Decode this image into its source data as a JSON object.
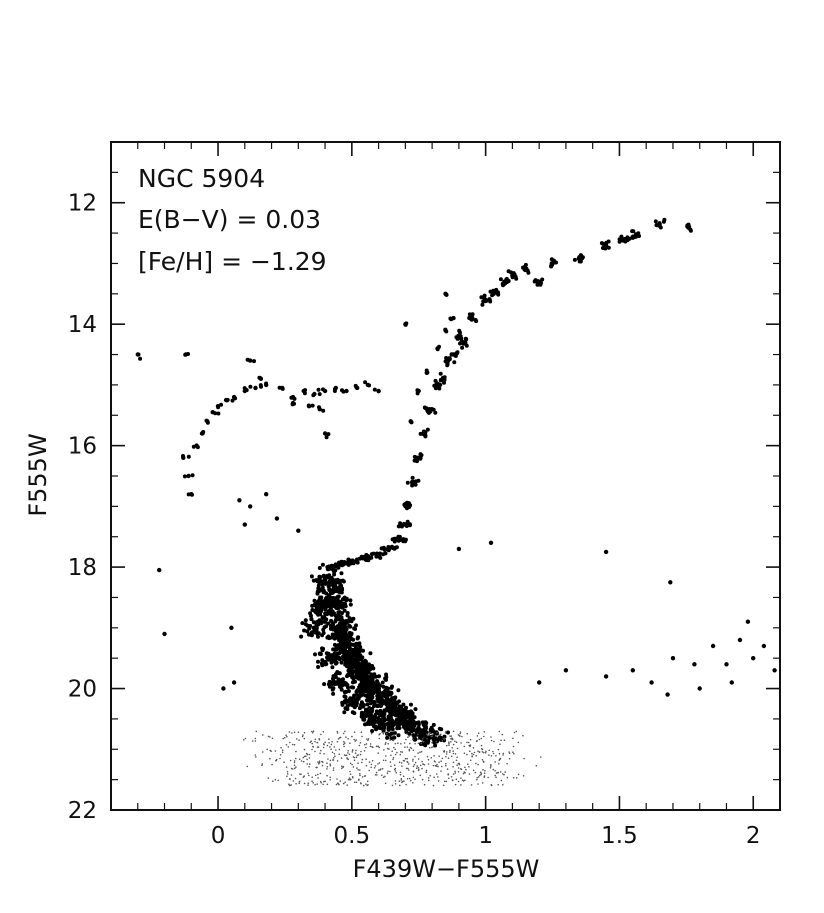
{
  "chart_data": {
    "type": "scatter",
    "title": "",
    "annotations": [
      "NGC 5904",
      "E(B−V) = 0.03",
      "[Fe/H] = −1.29"
    ],
    "xlabel": "F439W−F555W",
    "ylabel": "F555W",
    "xlim": [
      -0.4,
      2.1
    ],
    "ylim": [
      22,
      11
    ],
    "y_axis_inverted": true,
    "x_ticks": [
      0,
      0.5,
      1,
      1.5,
      2
    ],
    "x_tick_labels": [
      "0",
      "0.5",
      "1",
      "1.5",
      "2"
    ],
    "y_ticks": [
      12,
      14,
      16,
      18,
      20,
      22
    ],
    "y_tick_labels": [
      "12",
      "14",
      "16",
      "18",
      "20",
      "22"
    ],
    "grid": false,
    "legend": "none",
    "marker_color": "#000000",
    "series": [
      {
        "description_of_feature": "main sequence turnoff and upper main sequence",
        "points": [
          [
            0.4,
            18.2
          ],
          [
            0.42,
            18.5
          ],
          [
            0.44,
            18.8
          ],
          [
            0.46,
            19.1
          ],
          [
            0.48,
            19.4
          ],
          [
            0.5,
            19.6
          ],
          [
            0.53,
            19.8
          ],
          [
            0.56,
            20.0
          ],
          [
            0.6,
            20.2
          ],
          [
            0.64,
            20.35
          ],
          [
            0.68,
            20.5
          ],
          [
            0.72,
            20.6
          ],
          [
            0.76,
            20.7
          ],
          [
            0.8,
            20.8
          ],
          [
            0.43,
            18.3
          ],
          [
            0.45,
            18.6
          ],
          [
            0.47,
            19.0
          ],
          [
            0.49,
            19.3
          ],
          [
            0.52,
            19.5
          ],
          [
            0.55,
            19.7
          ],
          [
            0.58,
            19.9
          ],
          [
            0.62,
            20.1
          ],
          [
            0.66,
            20.3
          ],
          [
            0.7,
            20.45
          ],
          [
            0.38,
            18.7
          ],
          [
            0.36,
            19.0
          ],
          [
            0.41,
            19.5
          ],
          [
            0.45,
            19.9
          ],
          [
            0.5,
            20.2
          ],
          [
            0.55,
            20.4
          ],
          [
            0.6,
            20.55
          ],
          [
            0.65,
            20.65
          ]
        ]
      },
      {
        "description_of_feature": "subgiant branch",
        "points": [
          [
            0.42,
            18.0
          ],
          [
            0.46,
            17.95
          ],
          [
            0.5,
            17.9
          ],
          [
            0.55,
            17.85
          ],
          [
            0.6,
            17.8
          ],
          [
            0.64,
            17.7
          ],
          [
            0.68,
            17.55
          ],
          [
            0.7,
            17.3
          ]
        ]
      },
      {
        "description_of_feature": "red giant branch",
        "points": [
          [
            0.71,
            17.0
          ],
          [
            0.73,
            16.6
          ],
          [
            0.75,
            16.2
          ],
          [
            0.77,
            15.8
          ],
          [
            0.79,
            15.4
          ],
          [
            0.82,
            15.0
          ],
          [
            0.86,
            14.6
          ],
          [
            0.9,
            14.2
          ],
          [
            0.95,
            13.9
          ],
          [
            1.0,
            13.6
          ],
          [
            1.07,
            13.3
          ],
          [
            1.15,
            13.1
          ],
          [
            1.25,
            13.0
          ],
          [
            1.35,
            12.9
          ],
          [
            1.45,
            12.7
          ],
          [
            1.52,
            12.6
          ],
          [
            1.56,
            12.55
          ],
          [
            1.65,
            12.35
          ],
          [
            1.76,
            12.4
          ],
          [
            0.84,
            14.9
          ],
          [
            0.88,
            14.5
          ],
          [
            0.92,
            14.3
          ],
          [
            1.03,
            13.5
          ],
          [
            1.1,
            13.2
          ],
          [
            1.2,
            13.3
          ]
        ]
      },
      {
        "description_of_feature": "asymptotic giant branch",
        "points": [
          [
            0.72,
            15.6
          ],
          [
            0.75,
            15.1
          ],
          [
            0.78,
            14.8
          ],
          [
            0.82,
            14.4
          ],
          [
            0.85,
            14.1
          ],
          [
            0.88,
            13.9
          ],
          [
            0.85,
            13.5
          ],
          [
            0.7,
            14.0
          ]
        ]
      },
      {
        "description_of_feature": "horizontal branch",
        "points": [
          [
            -0.13,
            16.2
          ],
          [
            -0.11,
            16.5
          ],
          [
            -0.1,
            16.8
          ],
          [
            -0.08,
            16.0
          ],
          [
            -0.06,
            15.8
          ],
          [
            -0.04,
            15.6
          ],
          [
            -0.02,
            15.45
          ],
          [
            0.0,
            15.35
          ],
          [
            0.03,
            15.25
          ],
          [
            0.06,
            15.2
          ],
          [
            0.1,
            15.1
          ],
          [
            0.14,
            15.05
          ],
          [
            0.18,
            15.0
          ],
          [
            0.24,
            15.05
          ],
          [
            0.28,
            15.2
          ],
          [
            0.32,
            15.1
          ],
          [
            0.36,
            15.15
          ],
          [
            0.4,
            15.1
          ],
          [
            0.44,
            15.05
          ],
          [
            0.48,
            15.1
          ],
          [
            0.52,
            15.05
          ],
          [
            0.56,
            15.0
          ],
          [
            0.6,
            15.1
          ],
          [
            0.28,
            15.3
          ],
          [
            0.34,
            15.35
          ],
          [
            0.38,
            15.4
          ],
          [
            -0.3,
            14.5
          ],
          [
            -0.12,
            14.5
          ],
          [
            0.12,
            14.6
          ],
          [
            0.16,
            14.9
          ],
          [
            0.4,
            15.8
          ]
        ]
      },
      {
        "description_of_feature": "blue stragglers and field stars",
        "points": [
          [
            0.08,
            16.9
          ],
          [
            0.12,
            17.0
          ],
          [
            0.18,
            16.8
          ],
          [
            0.1,
            17.3
          ],
          [
            0.22,
            17.2
          ],
          [
            0.3,
            17.4
          ],
          [
            -0.22,
            18.05
          ],
          [
            -0.2,
            19.1
          ],
          [
            0.05,
            19.0
          ],
          [
            0.06,
            19.9
          ],
          [
            0.02,
            20.0
          ],
          [
            1.45,
            17.75
          ],
          [
            1.69,
            18.25
          ],
          [
            1.45,
            19.8
          ],
          [
            1.55,
            19.7
          ],
          [
            1.62,
            19.9
          ],
          [
            1.7,
            19.5
          ],
          [
            1.78,
            19.6
          ],
          [
            1.85,
            19.3
          ],
          [
            1.9,
            19.6
          ],
          [
            1.95,
            19.2
          ],
          [
            2.0,
            19.5
          ],
          [
            2.04,
            19.3
          ],
          [
            1.98,
            18.9
          ],
          [
            1.92,
            19.9
          ],
          [
            1.68,
            20.1
          ],
          [
            1.8,
            20.0
          ],
          [
            2.08,
            19.7
          ],
          [
            1.3,
            19.7
          ],
          [
            1.2,
            19.9
          ],
          [
            0.9,
            17.7
          ],
          [
            1.02,
            17.6
          ]
        ]
      }
    ]
  }
}
